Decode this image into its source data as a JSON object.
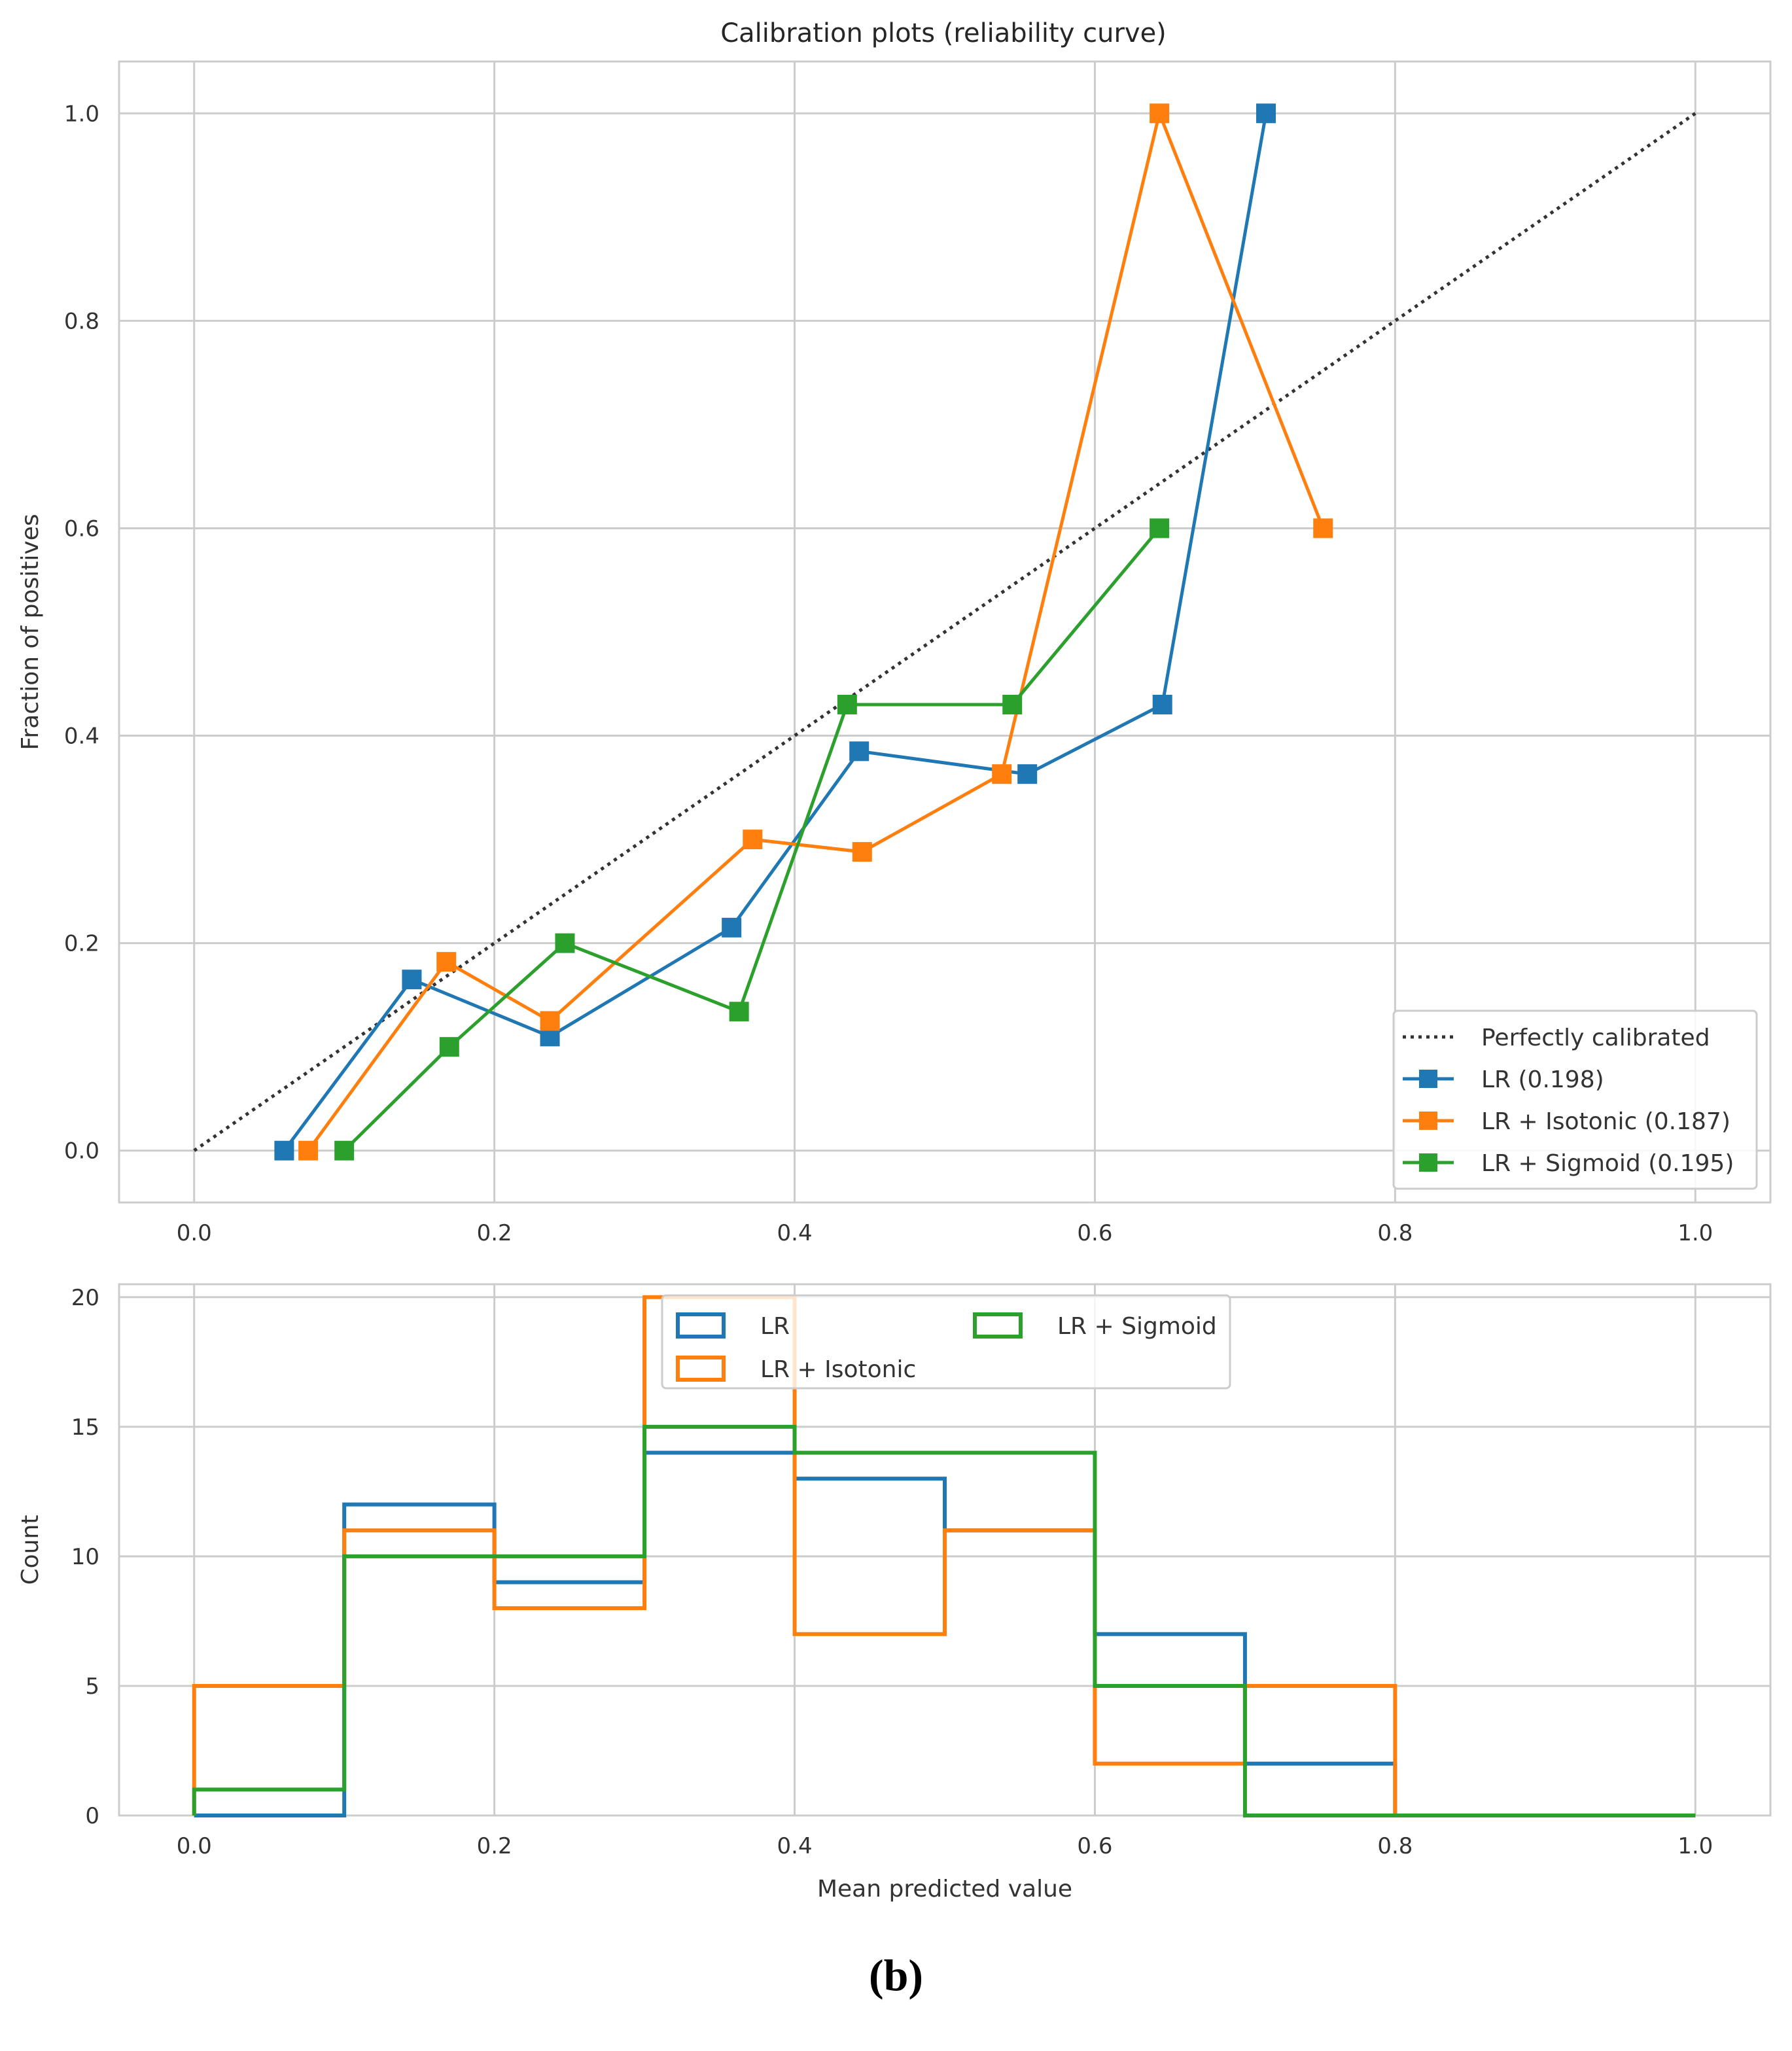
{
  "chart_data": [
    {
      "type": "line",
      "title": "Calibration plots  (reliability curve)",
      "xlabel": "",
      "ylabel": "Fraction of positives",
      "xlim": [
        -0.05,
        1.05
      ],
      "ylim": [
        -0.05,
        1.05
      ],
      "xticks": [
        "0.0",
        "0.2",
        "0.4",
        "0.6",
        "0.8",
        "1.0"
      ],
      "yticks": [
        "0.0",
        "0.2",
        "0.4",
        "0.6",
        "0.8",
        "1.0"
      ],
      "grid": true,
      "legend_position": "bottom-right",
      "reference": {
        "name": "Perfectly calibrated",
        "x": [
          0,
          1
        ],
        "y": [
          0,
          1
        ],
        "color": "#333333",
        "style": "dotted"
      },
      "series": [
        {
          "name": "LR (0.198)",
          "color": "#1f77b4",
          "x": [
            0.06,
            0.145,
            0.237,
            0.358,
            0.443,
            0.555,
            0.645,
            0.714
          ],
          "y": [
            0.0,
            0.165,
            0.11,
            0.215,
            0.385,
            0.363,
            0.43,
            1.0
          ]
        },
        {
          "name": "LR + Isotonic (0.187)",
          "color": "#ff7f0e",
          "x": [
            0.076,
            0.168,
            0.237,
            0.372,
            0.445,
            0.538,
            0.643,
            0.752
          ],
          "y": [
            0.0,
            0.182,
            0.125,
            0.3,
            0.288,
            0.363,
            1.0,
            0.6
          ]
        },
        {
          "name": "LR + Sigmoid (0.195)",
          "color": "#2ca02c",
          "x": [
            0.1,
            0.17,
            0.247,
            0.363,
            0.435,
            0.545,
            0.643
          ],
          "y": [
            0.0,
            0.1,
            0.2,
            0.134,
            0.43,
            0.43,
            0.6
          ]
        }
      ]
    },
    {
      "type": "histogram-step",
      "title": "",
      "xlabel": "Mean predicted value",
      "ylabel": "Count",
      "xlim": [
        -0.05,
        1.05
      ],
      "ylim": [
        0,
        20.5
      ],
      "xticks": [
        "0.0",
        "0.2",
        "0.4",
        "0.6",
        "0.8",
        "1.0"
      ],
      "yticks": [
        "0",
        "5",
        "10",
        "15",
        "20"
      ],
      "grid": true,
      "legend_position": "top-center",
      "bin_edges": [
        0.0,
        0.1,
        0.2,
        0.3,
        0.4,
        0.5,
        0.6,
        0.7,
        0.8,
        0.9,
        1.0
      ],
      "series": [
        {
          "name": "LR",
          "color": "#1f77b4",
          "counts": [
            0,
            12,
            9,
            14,
            13,
            11,
            7,
            2,
            0,
            0
          ]
        },
        {
          "name": "LR + Isotonic",
          "color": "#ff7f0e",
          "counts": [
            5,
            11,
            8,
            20,
            7,
            11,
            2,
            5,
            0,
            0
          ]
        },
        {
          "name": "LR + Sigmoid",
          "color": "#2ca02c",
          "counts": [
            1,
            10,
            10,
            15,
            14,
            14,
            5,
            0,
            0,
            0
          ]
        }
      ]
    }
  ],
  "caption": "(b)"
}
